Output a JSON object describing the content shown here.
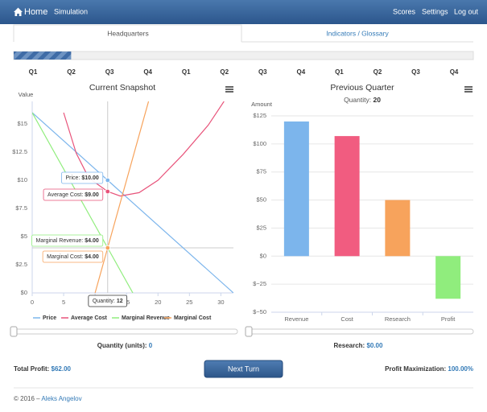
{
  "navbar": {
    "brand": "Home",
    "links": [
      "Simulation"
    ],
    "right_links": [
      "Scores",
      "Settings",
      "Log out"
    ]
  },
  "tabs": [
    "Headquarters",
    "Indicators / Glossary"
  ],
  "progress": 12.5,
  "quarters": [
    "Q1",
    "Q2",
    "Q3",
    "Q4",
    "Q1",
    "Q2",
    "Q3",
    "Q4",
    "Q1",
    "Q2",
    "Q3",
    "Q4"
  ],
  "chart_data": [
    {
      "type": "line",
      "title": "Current Snapshot",
      "y_label": "Value",
      "xlim": [
        0,
        32
      ],
      "xticks": [
        0,
        5,
        10,
        15,
        20,
        25,
        30
      ],
      "ylim": [
        0,
        17
      ],
      "yticks": [
        {
          "value": 0,
          "label": "$0"
        },
        {
          "value": 2.5,
          "label": "$2.5"
        },
        {
          "value": 5,
          "label": "$5"
        },
        {
          "value": 7.5,
          "label": "$7.5"
        },
        {
          "value": 10,
          "label": "$10"
        },
        {
          "value": 12.5,
          "label": "$12.5"
        },
        {
          "value": 15,
          "label": "$15"
        }
      ],
      "grid": false,
      "crosshair_x": 12,
      "crosshair_label": "Quantity:",
      "series": [
        {
          "name": "Price",
          "color": "#7cb5ec",
          "x": [
            0,
            12,
            32
          ],
          "values": [
            16,
            10,
            0
          ]
        },
        {
          "name": "Average Cost",
          "color": "#e8537a",
          "x": [
            5,
            7,
            9,
            12,
            14,
            17,
            20,
            24,
            28,
            30.5
          ],
          "values": [
            16,
            12.4,
            10.2,
            9,
            8.6,
            8.9,
            10,
            12.3,
            14.9,
            17
          ]
        },
        {
          "name": "Marginal Revenue",
          "color": "#90ed7d",
          "x": [
            0,
            12,
            16
          ],
          "values": [
            16,
            4,
            0
          ]
        },
        {
          "name": "Marginal Cost",
          "color": "#f7a35c",
          "x": [
            10,
            12,
            18.5
          ],
          "values": [
            0,
            4,
            17
          ]
        }
      ],
      "annotations": [
        {
          "label": "Price:",
          "value": "$10.00"
        },
        {
          "label": "Average Cost:",
          "value": "$9.00"
        },
        {
          "label": "Marginal Revenue:",
          "value": "$4.00"
        },
        {
          "label": "Marginal Cost:",
          "value": "$4.00"
        }
      ]
    },
    {
      "type": "bar",
      "title": "Previous Quarter",
      "subtitle_label": "Quantity:",
      "subtitle_value": 20,
      "y_label": "Amount",
      "categories": [
        "Revenue",
        "Cost",
        "Research",
        "Profit"
      ],
      "values": [
        120,
        107,
        50,
        -38
      ],
      "colors": [
        "#7cb5ec",
        "#f15c80",
        "#f7a35c",
        "#90ed7d"
      ],
      "ylim": [
        -50,
        125
      ],
      "yticks": [
        {
          "value": -50,
          "label": "$−50"
        },
        {
          "value": -25,
          "label": "$−25"
        },
        {
          "value": 0,
          "label": "$0"
        },
        {
          "value": 25,
          "label": "$25"
        },
        {
          "value": 50,
          "label": "$50"
        },
        {
          "value": 75,
          "label": "$75"
        },
        {
          "value": 100,
          "label": "$100"
        },
        {
          "value": 125,
          "label": "$125"
        }
      ],
      "grid": true
    }
  ],
  "controls": {
    "quantity_label": "Quantity (units):",
    "quantity_value": 0,
    "research_label": "Research:",
    "research_value": "$0.00"
  },
  "summary": {
    "total_profit_label": "Total Profit:",
    "total_profit": "$62.00",
    "button": "Next Turn",
    "profit_max_label": "Profit Maximization:",
    "profit_max": "100.00%"
  },
  "footer": {
    "text": "© 2016 –",
    "author": "Aleks Angelov"
  }
}
